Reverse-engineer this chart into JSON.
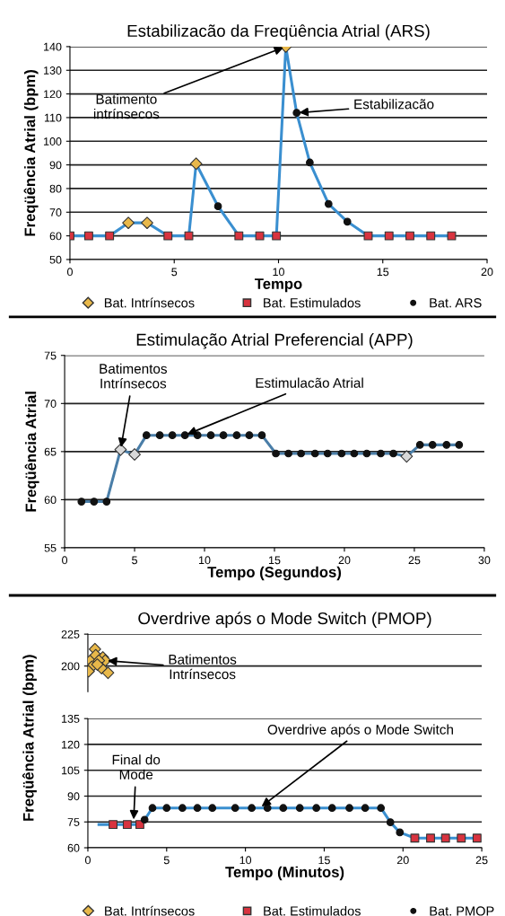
{
  "chart_data": [
    {
      "type": "line",
      "title": "Estabilizacão da Freqüência Atrial (ARS)",
      "xlabel": "Tempo",
      "ylabel": "Freqüência Atrial (bpm)",
      "xlim": [
        0,
        20
      ],
      "xticks": [
        0,
        5,
        10,
        15,
        20
      ],
      "ylim": [
        50,
        140
      ],
      "yticks": [
        50,
        60,
        70,
        80,
        90,
        100,
        110,
        120,
        130,
        140
      ],
      "grid": "y",
      "legend": "bottom",
      "series": [
        {
          "type": "line",
          "color": "#3a8fd0",
          "marker": "none",
          "x": [
            0,
            0.9,
            1.9,
            2.8,
            3.7,
            4.7,
            5.7,
            6.05,
            7.1,
            8.1,
            9.1,
            9.9,
            10.35,
            10.87,
            11.5,
            12.4,
            13.3,
            14.3,
            15.3,
            16.3,
            17.3,
            18.3
          ],
          "values": [
            60,
            60,
            60,
            65.5,
            65.5,
            60,
            60,
            90.5,
            72.5,
            60,
            60,
            60,
            140,
            112,
            91,
            73.5,
            66,
            60,
            60,
            60,
            60,
            60
          ]
        },
        {
          "type": "scatter",
          "name": "Bat. Intrínsecos",
          "color": "#e8b84a",
          "marker": "diamond",
          "x": [
            2.8,
            3.7,
            6.05,
            10.35
          ],
          "values": [
            65.5,
            65.5,
            90.5,
            140
          ]
        },
        {
          "type": "scatter",
          "name": "Bat. Estimulados",
          "color": "#d8333f",
          "marker": "square",
          "x": [
            0,
            0.9,
            1.9,
            4.7,
            5.7,
            8.1,
            9.1,
            9.9,
            14.3,
            15.3,
            16.3,
            17.3,
            18.3
          ],
          "values": [
            60,
            60,
            60,
            60,
            60,
            60,
            60,
            60,
            60,
            60,
            60,
            60,
            60
          ]
        },
        {
          "type": "scatter",
          "name": "Bat. ARS",
          "color": "#111111",
          "marker": "circle",
          "x": [
            7.1,
            10.87,
            11.5,
            12.4,
            13.3
          ],
          "values": [
            72.5,
            112,
            91,
            73.5,
            66
          ]
        }
      ],
      "annotations": [
        {
          "text": "Batimento\nintrínsecos",
          "x": 10.35,
          "y": 140
        },
        {
          "text": "Estabilizacão",
          "x": 10.87,
          "y": 112
        }
      ]
    },
    {
      "type": "line",
      "title": "Estimulação Atrial Preferencial (APP)",
      "xlabel": "Tempo (Segundos)",
      "ylabel": "Freqüência Atrial",
      "xlim": [
        0,
        30
      ],
      "xticks": [
        0,
        5,
        10,
        15,
        20,
        25,
        30
      ],
      "ylim": [
        55,
        75
      ],
      "yticks": [
        55,
        60,
        65,
        70,
        75
      ],
      "grid": "y",
      "series": [
        {
          "type": "line",
          "color": "#4a7ea8",
          "marker": "none",
          "x": [
            1.2,
            2.1,
            3.0,
            4.0,
            5.0,
            5.85,
            6.8,
            7.7,
            8.6,
            9.5,
            10.45,
            11.35,
            12.3,
            13.2,
            14.1,
            15.1,
            16.0,
            16.9,
            17.9,
            18.8,
            19.8,
            20.7,
            21.6,
            22.6,
            23.5,
            24.45,
            25.4,
            26.3,
            27.3,
            28.2
          ],
          "values": [
            59.8,
            59.8,
            59.8,
            65.2,
            64.7,
            66.7,
            66.7,
            66.7,
            66.7,
            66.7,
            66.7,
            66.7,
            66.7,
            66.7,
            66.7,
            64.8,
            64.8,
            64.8,
            64.8,
            64.8,
            64.8,
            64.8,
            64.8,
            64.8,
            64.8,
            64.5,
            65.7,
            65.7,
            65.7,
            65.7
          ]
        },
        {
          "type": "scatter",
          "color": "#d8d8d8",
          "marker": "diamond",
          "x": [
            4.0,
            5.0,
            24.45
          ],
          "values": [
            65.2,
            64.7,
            64.5
          ]
        },
        {
          "type": "scatter",
          "color": "#111111",
          "marker": "circle",
          "x": [
            1.2,
            2.1,
            3.0,
            5.85,
            6.8,
            7.7,
            8.6,
            9.5,
            10.45,
            11.35,
            12.3,
            13.2,
            14.1,
            15.1,
            16.0,
            16.9,
            17.9,
            18.8,
            19.8,
            20.7,
            21.6,
            22.6,
            23.5,
            25.4,
            26.3,
            27.3,
            28.2
          ],
          "values": [
            59.8,
            59.8,
            59.8,
            66.7,
            66.7,
            66.7,
            66.7,
            66.7,
            66.7,
            66.7,
            66.7,
            66.7,
            66.7,
            64.8,
            64.8,
            64.8,
            64.8,
            64.8,
            64.8,
            64.8,
            64.8,
            64.8,
            64.8,
            65.7,
            65.7,
            65.7,
            65.7
          ]
        }
      ],
      "annotations": [
        {
          "text": "Batimentos\nIntrínsecos",
          "x": 4.0,
          "y": 65.2
        },
        {
          "text": "Estimulacão Atrial",
          "x": 8.6,
          "y": 66.7
        }
      ]
    },
    {
      "type": "line",
      "title": "Overdrive após o Mode Switch (PMOP)",
      "tick_labels": "y",
      "xlim": [
        0,
        25
      ],
      "ylim": [
        180,
        225
      ],
      "yticks": [
        200,
        225
      ],
      "grid": "y",
      "series": [
        {
          "type": "scatter",
          "name": "Bat. Intrínsecos",
          "color": "#e8b84a",
          "marker": "diamond",
          "x": [
            0.45,
            0.16,
            0.5,
            0.95,
            1.1,
            0.7,
            0.25,
            0.87,
            1.28,
            0.05,
            0.6
          ],
          "values": [
            213.3,
            204.3,
            208.5,
            206.8,
            204.3,
            204.3,
            199.5,
            198.3,
            194.7,
            195.9,
            201.2
          ]
        }
      ],
      "annotations": [
        {
          "text": "Batimentos\nIntrínsecos",
          "x": 1.1,
          "y": 204.3
        }
      ]
    },
    {
      "type": "line",
      "xlabel": "Tempo (Minutos)",
      "ylabel": "Freqüência Atrial (bpm)",
      "xlim": [
        0,
        25
      ],
      "xticks": [
        0,
        5,
        10,
        15,
        20,
        25
      ],
      "ylim": [
        60,
        135
      ],
      "yticks": [
        60,
        75,
        90,
        105,
        120,
        135
      ],
      "grid": "y",
      "legend": "bottom",
      "series": [
        {
          "type": "line",
          "color": "#3a8fd0",
          "marker": "none",
          "x": [
            0.7,
            1.6,
            2.5,
            3.3,
            3.6,
            4.1,
            5.0,
            6.0,
            6.95,
            7.9,
            9.35,
            10.4,
            11.4,
            12.4,
            13.45,
            14.5,
            15.5,
            16.6,
            17.6,
            18.6,
            19.2,
            19.8,
            20.75,
            21.75,
            22.7,
            23.7,
            24.7
          ],
          "values": [
            73.5,
            73.5,
            73.5,
            73.5,
            76.3,
            83.1,
            83.1,
            83.1,
            83.1,
            83.1,
            83.1,
            83.1,
            83.1,
            83.1,
            83.1,
            83.1,
            83.1,
            83.1,
            83.1,
            83.1,
            74.8,
            68.9,
            65.6,
            65.6,
            65.6,
            65.6,
            65.6
          ]
        },
        {
          "type": "scatter",
          "name": "Bat. Estimulados",
          "color": "#d8333f",
          "marker": "square",
          "x": [
            1.6,
            2.5,
            3.3,
            20.75,
            21.75,
            22.7,
            23.7,
            24.7
          ],
          "values": [
            73.5,
            73.5,
            73.5,
            65.6,
            65.6,
            65.6,
            65.6,
            65.6
          ]
        },
        {
          "type": "scatter",
          "name": "Bat. PMOP",
          "color": "#111111",
          "marker": "circle",
          "x": [
            3.6,
            4.1,
            5.0,
            6.0,
            6.95,
            7.9,
            9.35,
            10.4,
            11.4,
            12.4,
            13.45,
            14.5,
            15.5,
            16.6,
            17.6,
            18.6,
            19.2,
            19.8
          ],
          "values": [
            76.3,
            83.1,
            83.1,
            83.1,
            83.1,
            83.1,
            83.1,
            83.1,
            83.1,
            83.1,
            83.1,
            83.1,
            83.1,
            83.1,
            83.1,
            83.1,
            74.8,
            68.9
          ]
        }
      ],
      "annotations": [
        {
          "text": "Overdrive após o Mode Switch",
          "x": 10.9,
          "y": 83.1
        },
        {
          "text": "Final do\nMode",
          "x": 2.9,
          "y": 75
        }
      ]
    }
  ]
}
